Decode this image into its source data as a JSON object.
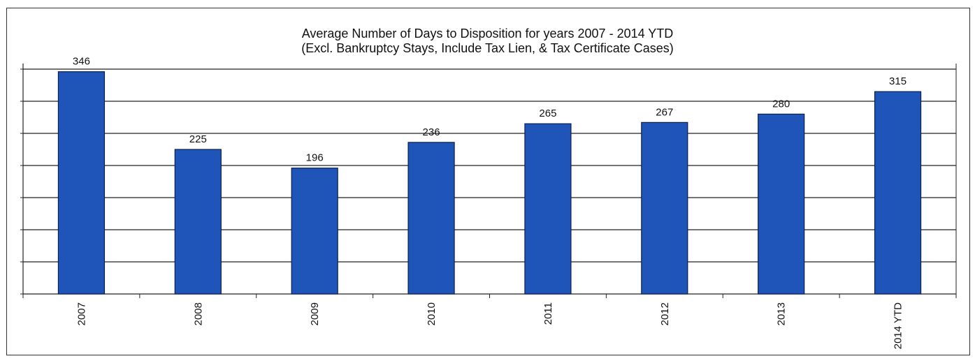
{
  "chart_data": {
    "type": "bar",
    "title": "Average Number of Days to Disposition  for years 2007 - 2014 YTD",
    "subtitle": "(Excl. Bankruptcy  Stays, Include Tax Lien, & Tax Certificate Cases)",
    "categories": [
      "2007",
      "2008",
      "2009",
      "2010",
      "2011",
      "2012",
      "2013",
      "2014 YTD"
    ],
    "values": [
      346,
      225,
      196,
      236,
      265,
      267,
      280,
      315
    ],
    "data_labels": [
      "346",
      "225",
      "196",
      "236",
      "265",
      "267",
      "280",
      "315"
    ],
    "xlabel": "",
    "ylabel": "",
    "ylim": [
      0,
      350
    ],
    "grid": true,
    "legend": "none",
    "bar_color": "#1f55b8"
  }
}
